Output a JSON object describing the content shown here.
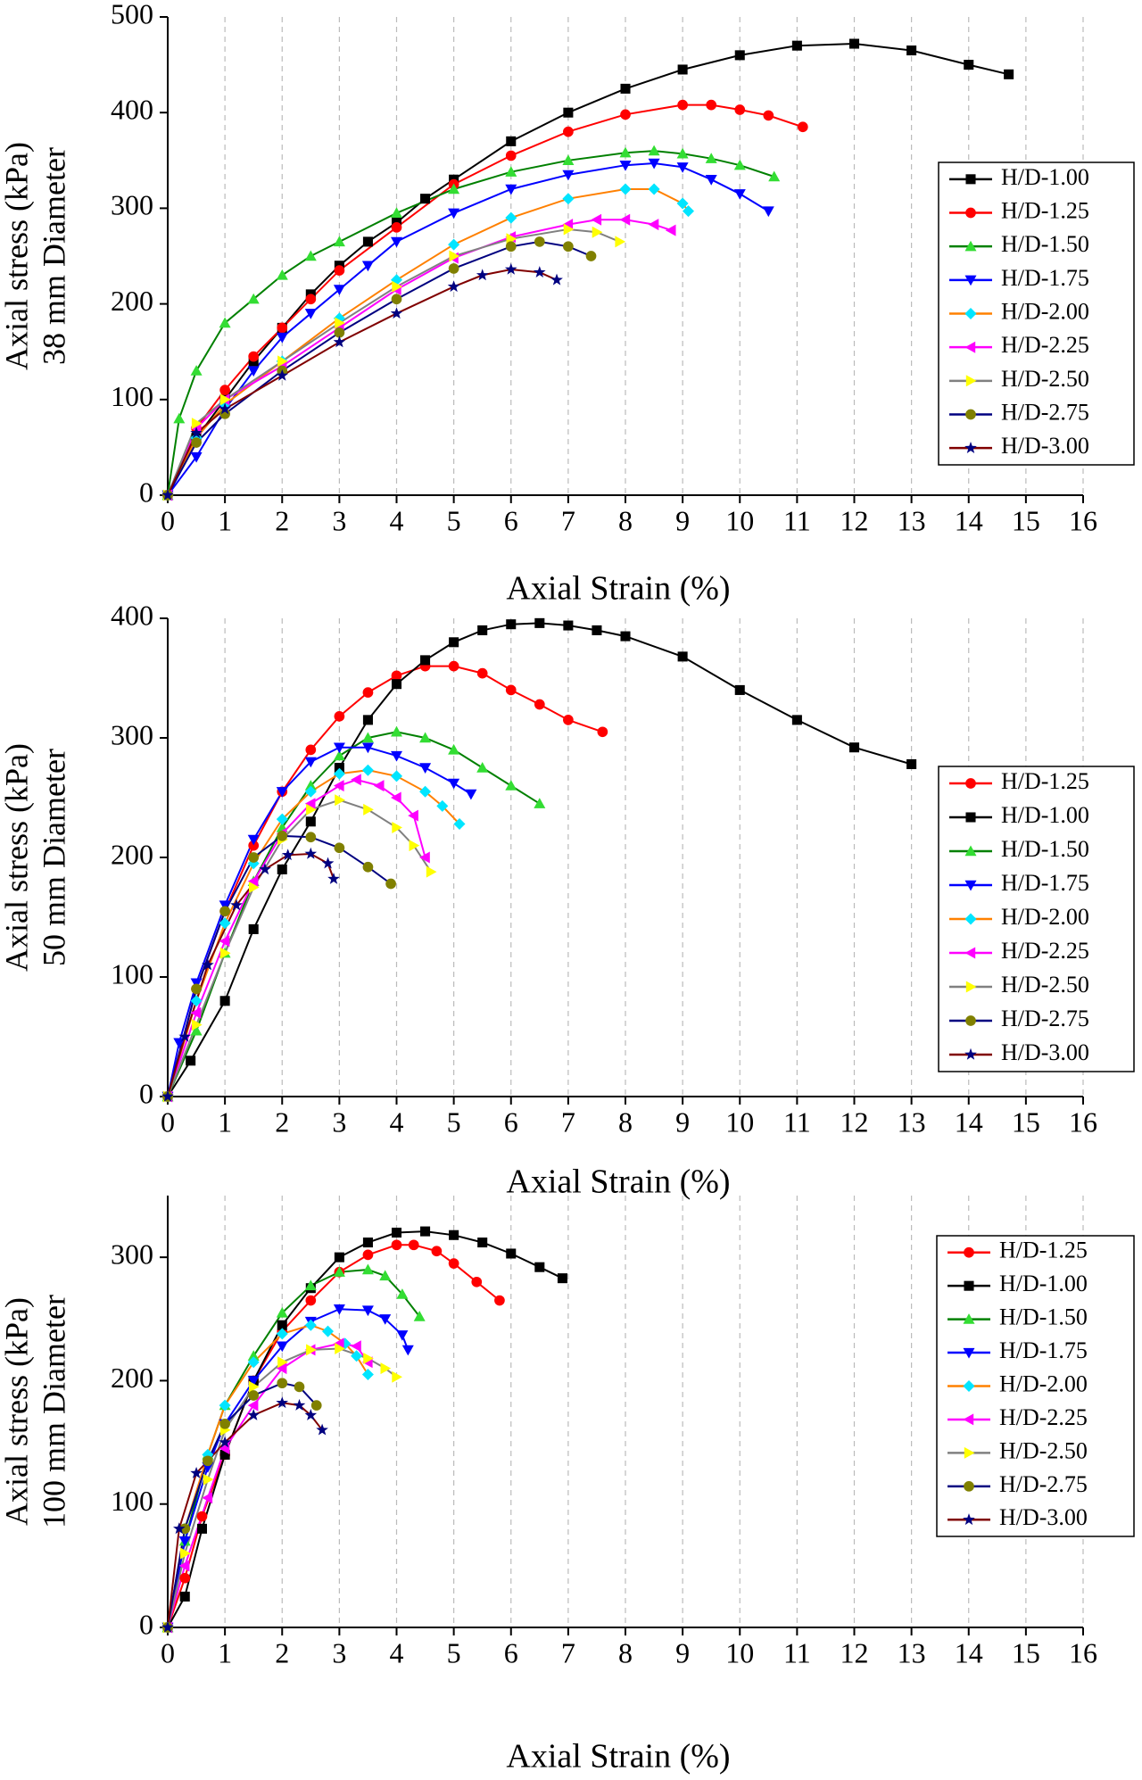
{
  "chart_data": [
    {
      "type": "line",
      "ylabel": [
        "Axial stress (kPa)",
        "38 mm Diameter"
      ],
      "xlabel": "Axial Strain (%)",
      "xlim": [
        0,
        16
      ],
      "ylim": [
        0,
        500
      ],
      "xticks": [
        0,
        1,
        2,
        3,
        4,
        5,
        6,
        7,
        8,
        9,
        10,
        11,
        12,
        13,
        14,
        15,
        16
      ],
      "yticks": [
        0,
        100,
        200,
        300,
        400,
        500
      ],
      "grid": "x",
      "legend": "right",
      "series": [
        {
          "name": "H/D-1.00",
          "color": "#000000",
          "marker": "square",
          "marker_color": "#000000",
          "x": [
            0,
            0.5,
            1,
            1.5,
            2,
            2.5,
            3,
            3.5,
            4,
            4.5,
            5,
            6,
            7,
            8,
            9,
            10,
            11,
            12,
            13,
            14,
            14.7
          ],
          "values": [
            0,
            60,
            100,
            140,
            175,
            210,
            240,
            265,
            285,
            310,
            330,
            370,
            400,
            425,
            445,
            460,
            470,
            472,
            465,
            450,
            440
          ]
        },
        {
          "name": "H/D-1.25",
          "color": "#ff0000",
          "marker": "circle",
          "marker_color": "#ff0000",
          "x": [
            0,
            0.5,
            1,
            1.5,
            2,
            2.5,
            3,
            4,
            5,
            6,
            7,
            8,
            9,
            9.5,
            10,
            10.5,
            11.1
          ],
          "values": [
            0,
            70,
            110,
            145,
            175,
            205,
            235,
            280,
            325,
            355,
            380,
            398,
            408,
            408,
            403,
            397,
            385
          ]
        },
        {
          "name": "H/D-1.50",
          "color": "#008000",
          "marker": "triangle-up",
          "marker_color": "#33dd33",
          "x": [
            0,
            0.2,
            0.5,
            1,
            1.5,
            2,
            2.5,
            3,
            4,
            5,
            6,
            7,
            8,
            8.5,
            9,
            9.5,
            10,
            10.6
          ],
          "values": [
            0,
            80,
            130,
            180,
            205,
            230,
            250,
            265,
            295,
            320,
            338,
            350,
            358,
            360,
            357,
            352,
            345,
            333
          ]
        },
        {
          "name": "H/D-1.75",
          "color": "#0000ff",
          "marker": "triangle-down",
          "marker_color": "#0000ff",
          "x": [
            0,
            0.5,
            1,
            1.5,
            2,
            2.5,
            3,
            3.5,
            4,
            5,
            6,
            7,
            8,
            8.5,
            9,
            9.5,
            10,
            10.5
          ],
          "values": [
            0,
            40,
            90,
            130,
            165,
            190,
            215,
            240,
            265,
            295,
            320,
            335,
            345,
            347,
            343,
            330,
            315,
            297
          ]
        },
        {
          "name": "H/D-2.00",
          "color": "#ff8000",
          "marker": "diamond",
          "marker_color": "#00e5ff",
          "x": [
            0,
            0.5,
            1,
            2,
            3,
            4,
            5,
            6,
            7,
            8,
            8.5,
            9,
            9.1
          ],
          "values": [
            0,
            60,
            95,
            140,
            185,
            225,
            262,
            290,
            310,
            320,
            320,
            305,
            297
          ]
        },
        {
          "name": "H/D-2.25",
          "color": "#ff00ff",
          "marker": "triangle-left",
          "marker_color": "#ff00ff",
          "x": [
            0,
            0.5,
            1,
            2,
            3,
            4,
            5,
            6,
            7,
            7.5,
            8,
            8.5,
            8.8
          ],
          "values": [
            0,
            70,
            100,
            135,
            175,
            215,
            248,
            270,
            283,
            288,
            288,
            283,
            277
          ]
        },
        {
          "name": "H/D-2.50",
          "color": "#808080",
          "marker": "triangle-right",
          "marker_color": "#ffff00",
          "x": [
            0,
            0.5,
            1,
            2,
            3,
            4,
            5,
            6,
            7,
            7.5,
            7.9
          ],
          "values": [
            0,
            75,
            100,
            140,
            180,
            218,
            250,
            268,
            278,
            275,
            265
          ]
        },
        {
          "name": "H/D-2.75",
          "color": "#000080",
          "marker": "circle",
          "marker_color": "#808000",
          "x": [
            0,
            0.5,
            1,
            2,
            3,
            4,
            5,
            6,
            6.5,
            7,
            7.4
          ],
          "values": [
            0,
            55,
            85,
            130,
            170,
            205,
            237,
            260,
            265,
            260,
            250
          ]
        },
        {
          "name": "H/D-3.00",
          "color": "#800000",
          "marker": "star",
          "marker_color": "#000080",
          "x": [
            0,
            0.5,
            1,
            2,
            3,
            4,
            5,
            5.5,
            6,
            6.5,
            6.8
          ],
          "values": [
            0,
            65,
            90,
            125,
            160,
            190,
            218,
            230,
            236,
            233,
            225
          ]
        }
      ]
    },
    {
      "type": "line",
      "ylabel": [
        "Axial stress (kPa)",
        "50 mm Diameter"
      ],
      "xlabel": "Axial Strain (%)",
      "xlim": [
        0,
        16
      ],
      "ylim": [
        0,
        400
      ],
      "xticks": [
        0,
        1,
        2,
        3,
        4,
        5,
        6,
        7,
        8,
        9,
        10,
        11,
        12,
        13,
        14,
        15,
        16
      ],
      "yticks": [
        0,
        100,
        200,
        300,
        400
      ],
      "grid": "x",
      "legend": "right",
      "series": [
        {
          "name": "H/D-1.25",
          "color": "#ff0000",
          "marker": "circle",
          "marker_color": "#ff0000",
          "x": [
            0,
            0.5,
            1,
            1.5,
            2,
            2.5,
            3,
            3.5,
            4,
            4.5,
            5,
            5.5,
            6,
            6.5,
            7,
            7.6
          ],
          "values": [
            0,
            90,
            155,
            210,
            255,
            290,
            318,
            338,
            352,
            360,
            360,
            354,
            340,
            328,
            315,
            305
          ]
        },
        {
          "name": "H/D-1.00",
          "color": "#000000",
          "marker": "square",
          "marker_color": "#000000",
          "x": [
            0,
            0.4,
            1,
            1.5,
            2,
            2.5,
            3,
            3.5,
            4,
            4.5,
            5,
            5.5,
            6,
            6.5,
            7,
            7.5,
            8,
            9,
            10,
            11,
            12,
            13
          ],
          "values": [
            0,
            30,
            80,
            140,
            190,
            230,
            275,
            315,
            345,
            365,
            380,
            390,
            395,
            396,
            394,
            390,
            385,
            368,
            340,
            315,
            292,
            278
          ]
        },
        {
          "name": "H/D-1.50",
          "color": "#008000",
          "marker": "triangle-up",
          "marker_color": "#33dd33",
          "x": [
            0,
            0.5,
            1,
            1.5,
            2,
            2.5,
            3,
            3.5,
            4,
            4.5,
            5,
            5.5,
            6,
            6.5
          ],
          "values": [
            0,
            55,
            120,
            180,
            225,
            260,
            285,
            300,
            305,
            300,
            290,
            275,
            260,
            245
          ]
        },
        {
          "name": "H/D-1.75",
          "color": "#0000ff",
          "marker": "triangle-down",
          "marker_color": "#0000ff",
          "x": [
            0,
            0.2,
            0.5,
            1,
            1.5,
            2,
            2.5,
            3,
            3.5,
            4,
            4.5,
            5,
            5.3
          ],
          "values": [
            0,
            45,
            95,
            160,
            215,
            255,
            280,
            292,
            292,
            285,
            275,
            262,
            253
          ]
        },
        {
          "name": "H/D-2.00",
          "color": "#ff8000",
          "marker": "diamond",
          "marker_color": "#00e5ff",
          "x": [
            0,
            0.5,
            1,
            1.5,
            2,
            2.5,
            3,
            3.5,
            4,
            4.5,
            4.8,
            5.1
          ],
          "values": [
            0,
            80,
            145,
            195,
            232,
            255,
            270,
            273,
            268,
            255,
            243,
            228
          ]
        },
        {
          "name": "H/D-2.25",
          "color": "#ff00ff",
          "marker": "triangle-left",
          "marker_color": "#ff00ff",
          "x": [
            0,
            0.5,
            1,
            1.5,
            2,
            2.5,
            3,
            3.3,
            3.7,
            4,
            4.3,
            4.5
          ],
          "values": [
            0,
            70,
            130,
            180,
            220,
            245,
            260,
            265,
            260,
            250,
            235,
            200
          ]
        },
        {
          "name": "H/D-2.50",
          "color": "#808080",
          "marker": "triangle-right",
          "marker_color": "#ffff00",
          "x": [
            0,
            0.5,
            1,
            1.5,
            2,
            2.5,
            3,
            3.5,
            4,
            4.3,
            4.6
          ],
          "values": [
            0,
            60,
            120,
            175,
            215,
            240,
            248,
            240,
            225,
            210,
            188
          ]
        },
        {
          "name": "H/D-2.75",
          "color": "#000080",
          "marker": "circle",
          "marker_color": "#808000",
          "x": [
            0,
            0.5,
            1,
            1.5,
            2,
            2.5,
            3,
            3.5,
            3.9
          ],
          "values": [
            0,
            90,
            155,
            200,
            218,
            217,
            208,
            192,
            178
          ]
        },
        {
          "name": "H/D-3.00",
          "color": "#800000",
          "marker": "star",
          "marker_color": "#000080",
          "x": [
            0,
            0.3,
            0.7,
            1.2,
            1.7,
            2.1,
            2.5,
            2.8,
            2.9
          ],
          "values": [
            0,
            50,
            110,
            160,
            190,
            202,
            203,
            195,
            182
          ]
        }
      ]
    },
    {
      "type": "line",
      "ylabel": [
        "Axial stress (kPa)",
        "100 mm Diameter"
      ],
      "xlabel": "Axial Strain (%)",
      "xlim": [
        0,
        16
      ],
      "ylim": [
        0,
        350
      ],
      "xticks": [
        0,
        1,
        2,
        3,
        4,
        5,
        6,
        7,
        8,
        9,
        10,
        11,
        12,
        13,
        14,
        15,
        16
      ],
      "yticks": [
        0,
        100,
        200,
        300
      ],
      "grid": "x",
      "legend": "right",
      "series": [
        {
          "name": "H/D-1.25",
          "color": "#ff0000",
          "marker": "circle",
          "marker_color": "#ff0000",
          "x": [
            0,
            0.3,
            0.6,
            1,
            1.5,
            2,
            2.5,
            3,
            3.5,
            4,
            4.3,
            4.7,
            5,
            5.4,
            5.8
          ],
          "values": [
            0,
            40,
            90,
            140,
            200,
            240,
            265,
            288,
            302,
            310,
            310,
            305,
            295,
            280,
            265
          ]
        },
        {
          "name": "H/D-1.00",
          "color": "#000000",
          "marker": "square",
          "marker_color": "#000000",
          "x": [
            0,
            0.3,
            0.6,
            1,
            1.5,
            2,
            2.5,
            3,
            3.5,
            4,
            4.5,
            5,
            5.5,
            6,
            6.5,
            6.9
          ],
          "values": [
            0,
            25,
            80,
            140,
            200,
            245,
            275,
            300,
            312,
            320,
            321,
            318,
            312,
            303,
            292,
            283
          ]
        },
        {
          "name": "H/D-1.50",
          "color": "#008000",
          "marker": "triangle-up",
          "marker_color": "#33dd33",
          "x": [
            0,
            0.3,
            0.7,
            1,
            1.5,
            2,
            2.5,
            3,
            3.5,
            3.8,
            4.1,
            4.4
          ],
          "values": [
            0,
            70,
            140,
            180,
            220,
            255,
            277,
            288,
            290,
            285,
            270,
            252
          ]
        },
        {
          "name": "H/D-1.75",
          "color": "#0000ff",
          "marker": "triangle-down",
          "marker_color": "#0000ff",
          "x": [
            0,
            0.3,
            0.7,
            1,
            1.5,
            2,
            2.5,
            3,
            3.5,
            3.8,
            4.1,
            4.2
          ],
          "values": [
            0,
            70,
            130,
            165,
            200,
            228,
            248,
            258,
            257,
            250,
            237,
            225
          ]
        },
        {
          "name": "H/D-2.00",
          "color": "#ff8000",
          "marker": "diamond",
          "marker_color": "#00e5ff",
          "x": [
            0,
            0.3,
            0.7,
            1,
            1.5,
            2,
            2.5,
            2.8,
            3.1,
            3.3,
            3.5
          ],
          "values": [
            0,
            80,
            140,
            180,
            215,
            238,
            245,
            240,
            230,
            220,
            205
          ]
        },
        {
          "name": "H/D-2.25",
          "color": "#ff00ff",
          "marker": "triangle-left",
          "marker_color": "#ff00ff",
          "x": [
            0,
            0.3,
            0.7,
            1,
            1.5,
            2,
            2.5,
            3,
            3.3,
            3.5
          ],
          "values": [
            0,
            50,
            105,
            145,
            180,
            210,
            225,
            230,
            228,
            215
          ]
        },
        {
          "name": "H/D-2.50",
          "color": "#808080",
          "marker": "triangle-right",
          "marker_color": "#ffff00",
          "x": [
            0,
            0.3,
            0.7,
            1,
            1.5,
            2,
            2.5,
            3,
            3.5,
            3.8,
            4
          ],
          "values": [
            0,
            60,
            120,
            160,
            195,
            215,
            225,
            226,
            218,
            210,
            203
          ]
        },
        {
          "name": "H/D-2.75",
          "color": "#000080",
          "marker": "circle",
          "marker_color": "#808000",
          "x": [
            0,
            0.3,
            0.7,
            1,
            1.5,
            2,
            2.3,
            2.6
          ],
          "values": [
            0,
            80,
            135,
            165,
            188,
            198,
            195,
            180
          ]
        },
        {
          "name": "H/D-3.00",
          "color": "#800000",
          "marker": "star",
          "marker_color": "#000080",
          "x": [
            0,
            0.2,
            0.5,
            1,
            1.5,
            2,
            2.3,
            2.5,
            2.7
          ],
          "values": [
            0,
            80,
            125,
            150,
            172,
            182,
            180,
            172,
            160
          ]
        }
      ]
    }
  ]
}
